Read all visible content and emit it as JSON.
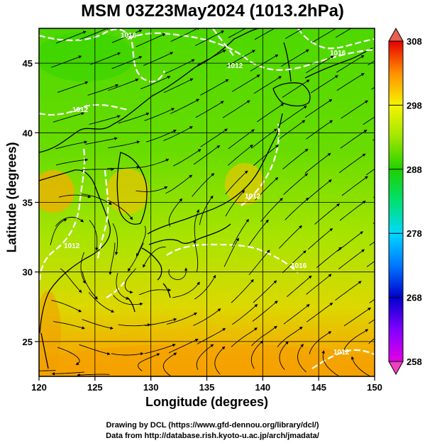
{
  "title": "MSM 03Z23May2024 (1013.2hPa)",
  "axes": {
    "xlabel": "Longitude (degrees)",
    "ylabel": "Latitude (degrees)",
    "xticks": [
      "120",
      "125",
      "130",
      "135",
      "140",
      "145",
      "150"
    ],
    "yticks": [
      "25",
      "30",
      "35",
      "40",
      "45"
    ],
    "xlim": [
      120,
      150
    ],
    "ylim": [
      22.5,
      47.5
    ]
  },
  "colorbar": {
    "ticks": [
      "258",
      "268",
      "278",
      "288",
      "298",
      "308"
    ],
    "range": [
      258,
      308
    ],
    "colors": [
      "#e400e4",
      "#8000ff",
      "#0000cd",
      "#0078ff",
      "#00d8ff",
      "#00ffaa",
      "#00d000",
      "#9ae600",
      "#f5f500",
      "#ffb000",
      "#ff5000",
      "#e60000"
    ]
  },
  "contour_labels": [
    "1012",
    "1012",
    "1012",
    "1012",
    "1016",
    "1016",
    "1016",
    "1012"
  ],
  "credits": {
    "line1": "Drawing by DCL (https://www.gfd-dennou.org/library/dcl/)",
    "line2": "Data from http://database.rish.kyoto-u.ac.jp/arch/jmadata/"
  }
}
